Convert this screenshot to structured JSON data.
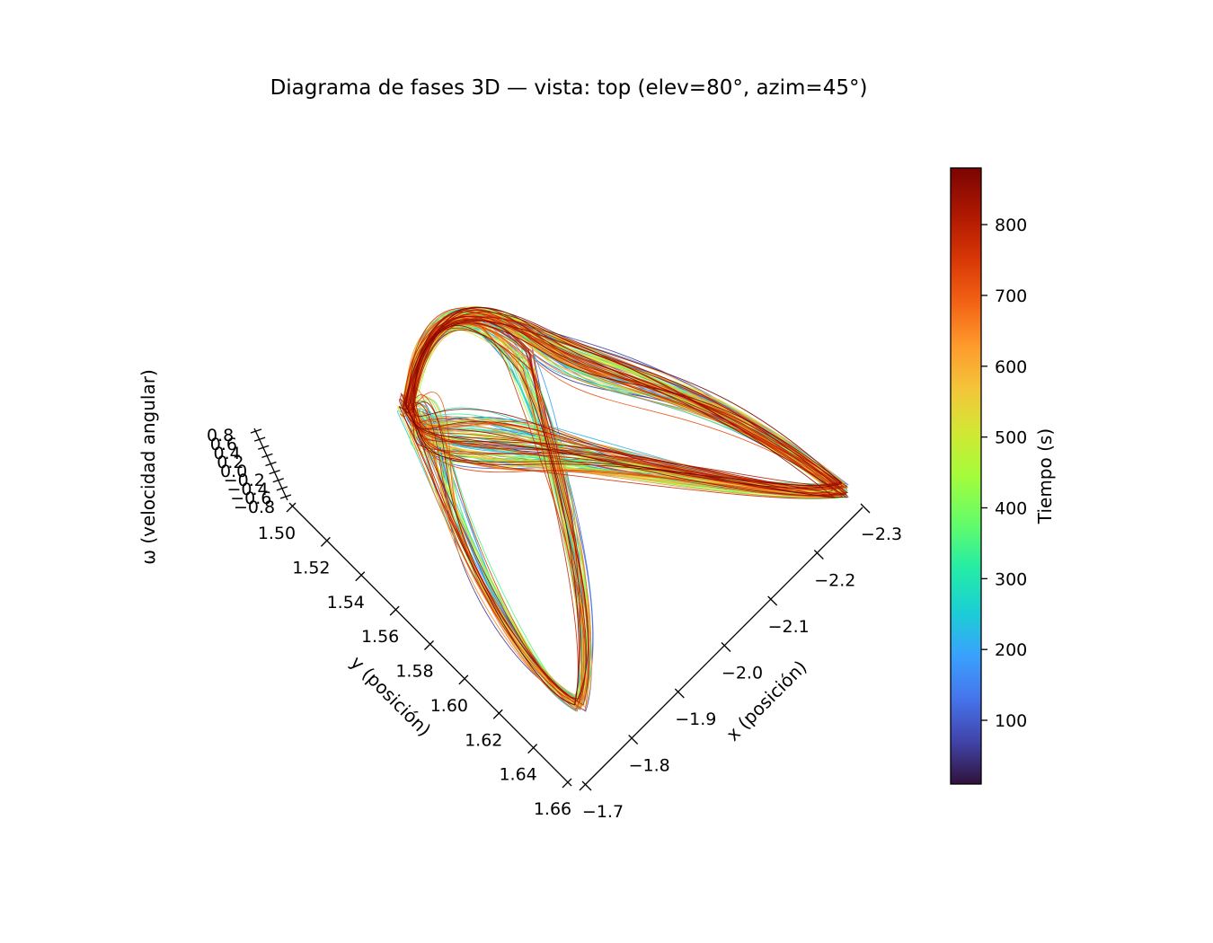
{
  "chart_data": {
    "type": "line",
    "title": "Diagrama de fases 3D — vista: top (elev=80°, azim=45°)",
    "view": {
      "elev": 80,
      "azim": 45
    },
    "axes": {
      "x": {
        "label": "x (posición)",
        "ticks": [
          "−1.7",
          "−1.8",
          "−1.9",
          "−2.0",
          "−2.1",
          "−2.2",
          "−2.3"
        ],
        "range": [
          -2.3,
          -1.7
        ]
      },
      "y": {
        "label": "y (posición)",
        "ticks": [
          "1.50",
          "1.52",
          "1.54",
          "1.56",
          "1.58",
          "1.60",
          "1.62",
          "1.64",
          "1.66"
        ],
        "range": [
          1.5,
          1.66
        ]
      },
      "z": {
        "label": "ω (velocidad angular)",
        "ticks": [
          "0.8",
          "0.6",
          "0.4",
          "0.2",
          "0.0",
          "−0.2",
          "−0.4",
          "−0.6",
          "−0.8"
        ],
        "range": [
          -0.8,
          0.8
        ]
      }
    },
    "colorbar": {
      "label": "Tiempo (s)",
      "ticks": [
        "100",
        "200",
        "300",
        "400",
        "500",
        "600",
        "700",
        "800"
      ],
      "range": [
        10,
        880
      ],
      "colormap": "turbo"
    },
    "time_range": [
      0,
      880
    ],
    "grid": false
  }
}
